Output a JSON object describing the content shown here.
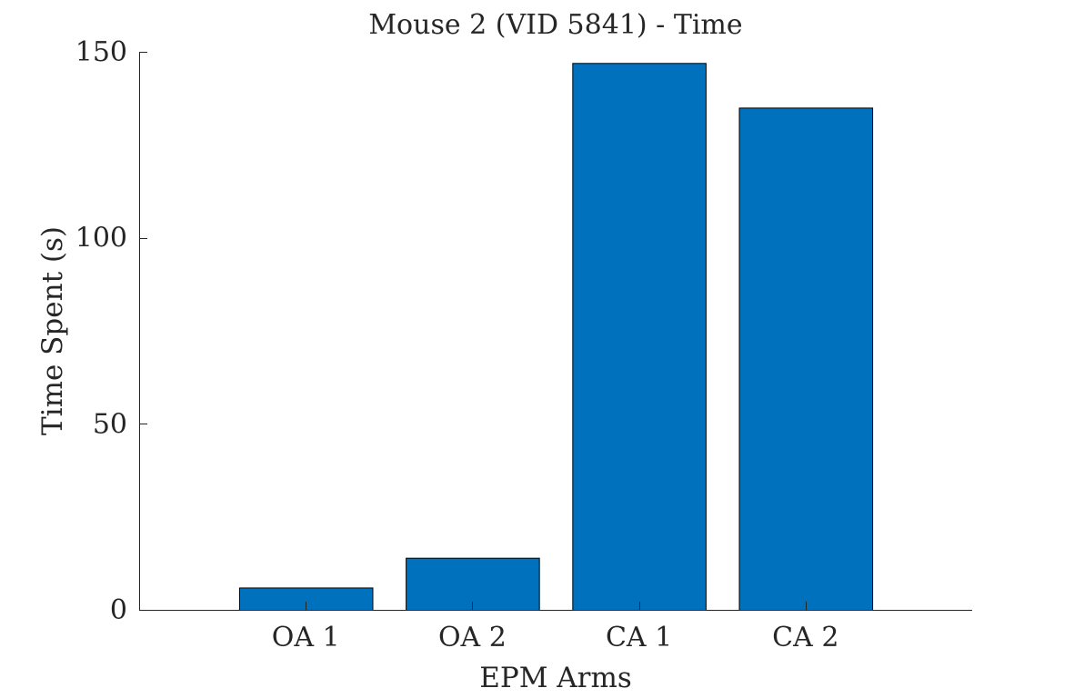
{
  "chart_data": {
    "type": "bar",
    "title": "Mouse 2 (VID 5841) - Time",
    "xlabel": "EPM Arms",
    "ylabel": "Time Spent (s)",
    "categories": [
      "OA 1",
      "OA 2",
      "CA 1",
      "CA 2"
    ],
    "values": [
      6,
      14,
      147,
      135
    ],
    "ylim": [
      0,
      150
    ],
    "yticks": [
      0,
      50,
      100,
      150
    ],
    "ytick_labels": [
      "0",
      "50",
      "100",
      "150"
    ],
    "xlim": [
      0,
      5
    ],
    "bar_color": "#0072bd",
    "grid": false,
    "legend": "none"
  }
}
